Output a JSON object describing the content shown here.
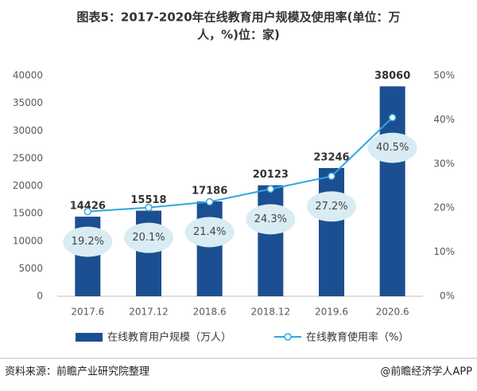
{
  "chart_data": {
    "type": "bar",
    "title": [
      "图表5：2017-2020年在线教育用户规模及使用率(单位：万",
      "人，%)位：家)"
    ],
    "categories": [
      "2017.6",
      "2017.12",
      "2018.6",
      "2018.12",
      "2019.6",
      "2020.6"
    ],
    "series": [
      {
        "name": "在线教育用户规模（万人）",
        "type": "bar",
        "color": "#1c4f91",
        "values": [
          14426,
          15518,
          17186,
          20123,
          23246,
          38060
        ]
      },
      {
        "name": "在线教育使用率（%）",
        "type": "line",
        "axis": "y2",
        "color": "#2fa6dd",
        "values": [
          19.2,
          20.1,
          21.4,
          24.3,
          27.2,
          40.5
        ],
        "value_labels": [
          "19.2%",
          "20.1%",
          "21.4%",
          "24.3%",
          "27.2%",
          "40.5%"
        ]
      }
    ],
    "ylim": [
      0,
      40000
    ],
    "yticks": [
      0,
      5000,
      10000,
      15000,
      20000,
      25000,
      30000,
      35000,
      40000
    ],
    "y2lim": [
      0,
      50
    ],
    "y2ticks": [
      {
        "value": 0,
        "label": "0%"
      },
      {
        "value": 10,
        "label": "10%"
      },
      {
        "value": 20,
        "label": "20%"
      },
      {
        "value": 30,
        "label": "30%"
      },
      {
        "value": 40,
        "label": "40%"
      },
      {
        "value": 50,
        "label": "50%"
      }
    ],
    "source": "资料来源：前瞻产业研究院整理",
    "credit": "@前瞻经济学人APP"
  }
}
